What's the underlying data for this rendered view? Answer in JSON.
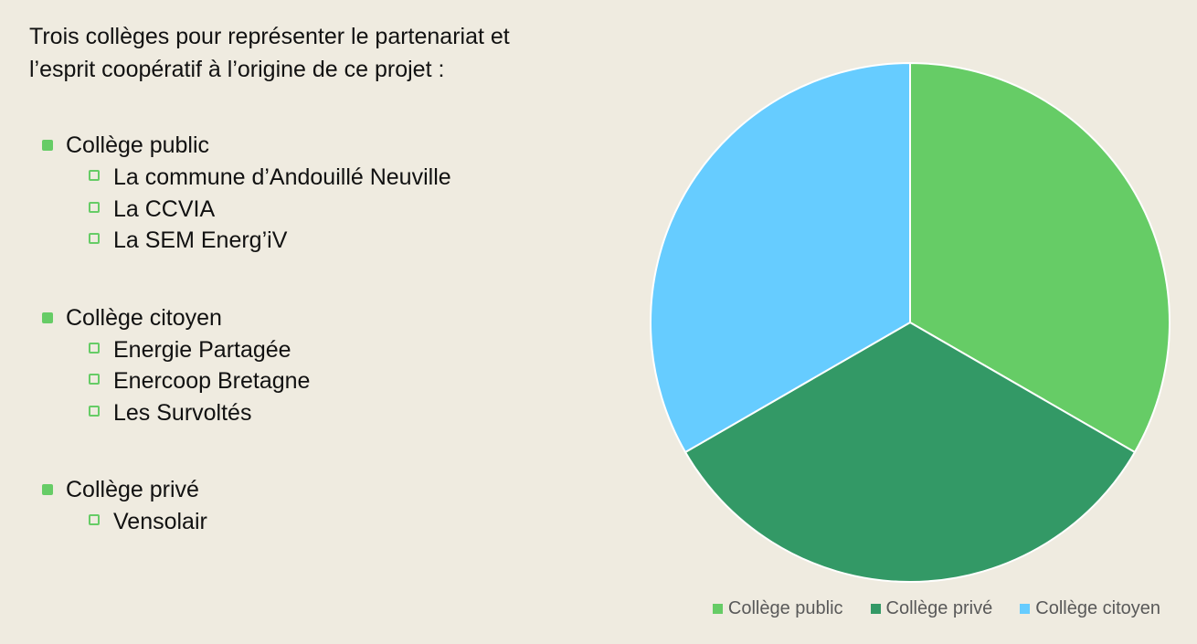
{
  "document": {
    "intro": [
      "Trois collèges pour représenter le partenariat et",
      "l’esprit coopératif à l’origine de ce projet :"
    ],
    "groups": [
      {
        "title": "Collège public",
        "items": [
          "La commune d’Andouillé Neuville",
          "La CCVIA",
          "La SEM Energ’iV"
        ]
      },
      {
        "title": "Collège citoyen",
        "items": [
          "Energie Partagée",
          "Enercoop Bretagne",
          "Les Survoltés"
        ]
      },
      {
        "title": "Collège privé",
        "items": [
          "Vensolair"
        ]
      }
    ]
  },
  "chart_data": {
    "type": "pie",
    "categories": [
      "Collège public",
      "Collège privé",
      "Collège citoyen"
    ],
    "values": [
      33.3,
      33.3,
      33.3
    ],
    "colors": [
      "#66cc66",
      "#339966",
      "#66ccff"
    ],
    "legend": "bottom"
  }
}
